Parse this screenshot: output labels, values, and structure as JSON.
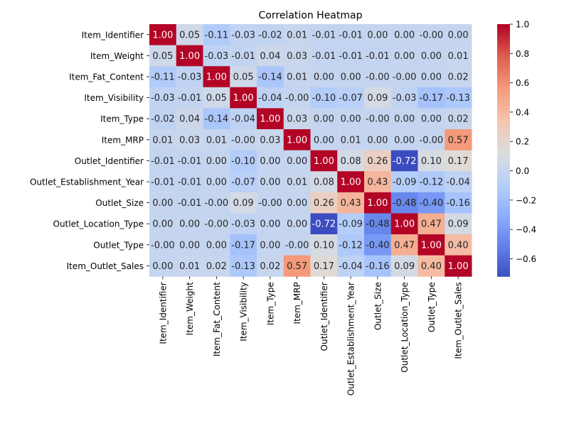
{
  "chart_data": {
    "type": "heatmap",
    "title": "Correlation Heatmap",
    "xlabel": "",
    "ylabel": "",
    "labels": [
      "Item_Identifier",
      "Item_Weight",
      "Item_Fat_Content",
      "Item_Visibility",
      "Item_Type",
      "Item_MRP",
      "Outlet_Identifier",
      "Outlet_Establishment_Year",
      "Outlet_Size",
      "Outlet_Location_Type",
      "Outlet_Type",
      "Item_Outlet_Sales"
    ],
    "matrix": [
      [
        "1.00",
        "0.05",
        "-0.11",
        "-0.03",
        "-0.02",
        "0.01",
        "-0.01",
        "-0.01",
        "0.00",
        "0.00",
        "-0.00",
        "0.00"
      ],
      [
        "0.05",
        "1.00",
        "-0.03",
        "-0.01",
        "0.04",
        "0.03",
        "-0.01",
        "-0.01",
        "-0.01",
        "0.00",
        "0.00",
        "0.01"
      ],
      [
        "-0.11",
        "-0.03",
        "1.00",
        "0.05",
        "-0.14",
        "0.01",
        "0.00",
        "0.00",
        "-0.00",
        "-0.00",
        "0.00",
        "0.02"
      ],
      [
        "-0.03",
        "-0.01",
        "0.05",
        "1.00",
        "-0.04",
        "-0.00",
        "-0.10",
        "-0.07",
        "0.09",
        "-0.03",
        "-0.17",
        "-0.13"
      ],
      [
        "-0.02",
        "0.04",
        "-0.14",
        "-0.04",
        "1.00",
        "0.03",
        "0.00",
        "0.00",
        "-0.00",
        "0.00",
        "0.00",
        "0.02"
      ],
      [
        "0.01",
        "0.03",
        "0.01",
        "-0.00",
        "0.03",
        "1.00",
        "0.00",
        "0.01",
        "0.00",
        "0.00",
        "-0.00",
        "0.57"
      ],
      [
        "-0.01",
        "-0.01",
        "0.00",
        "-0.10",
        "0.00",
        "0.00",
        "1.00",
        "0.08",
        "0.26",
        "-0.72",
        "0.10",
        "0.17"
      ],
      [
        "-0.01",
        "-0.01",
        "0.00",
        "-0.07",
        "0.00",
        "0.01",
        "0.08",
        "1.00",
        "0.43",
        "-0.09",
        "-0.12",
        "-0.04"
      ],
      [
        "0.00",
        "-0.01",
        "-0.00",
        "0.09",
        "-0.00",
        "0.00",
        "0.26",
        "0.43",
        "1.00",
        "-0.48",
        "-0.40",
        "-0.16"
      ],
      [
        "0.00",
        "0.00",
        "-0.00",
        "-0.03",
        "0.00",
        "0.00",
        "-0.72",
        "-0.09",
        "-0.48",
        "1.00",
        "0.47",
        "0.09"
      ],
      [
        "-0.00",
        "0.00",
        "0.00",
        "-0.17",
        "0.00",
        "-0.00",
        "0.10",
        "-0.12",
        "-0.40",
        "0.47",
        "1.00",
        "0.40"
      ],
      [
        "0.00",
        "0.01",
        "0.02",
        "-0.13",
        "0.02",
        "0.57",
        "0.17",
        "-0.04",
        "-0.16",
        "0.09",
        "0.40",
        "1.00"
      ]
    ],
    "colorscale": "coolwarm",
    "vmin": -0.72,
    "vmax": 1.0,
    "colorbar_ticks": [
      "1.0",
      "0.8",
      "0.6",
      "0.4",
      "0.2",
      "0.0",
      "−0.2",
      "−0.4",
      "−0.6"
    ],
    "grid": false
  }
}
